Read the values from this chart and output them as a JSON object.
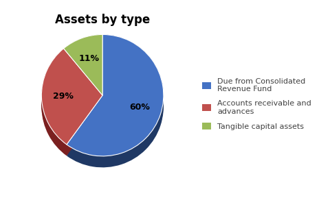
{
  "title": "Assets by type",
  "slices": [
    60,
    29,
    11
  ],
  "pct_labels": [
    "60%",
    "29%",
    "11%"
  ],
  "legend_labels": [
    "Due from Consolidated\nRevenue Fund",
    "Accounts receivable and\nadvances",
    "Tangible capital assets"
  ],
  "colors": [
    "#4472C4",
    "#C0504D",
    "#9BBB59"
  ],
  "dark_colors": [
    "#1F3864",
    "#7B2020",
    "#4F6228"
  ],
  "startangle": 90,
  "title_fontsize": 12,
  "pct_fontsize": 9,
  "background_color": "#FFFFFF"
}
